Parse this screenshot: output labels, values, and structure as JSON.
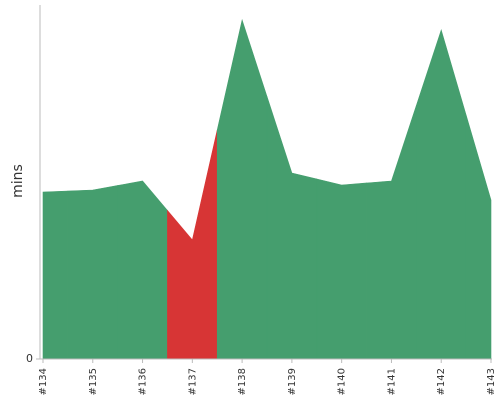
{
  "chart_data": {
    "type": "area",
    "y_label": "mins",
    "categories": [
      "#134",
      "#135",
      "#136",
      "#137",
      "#138",
      "#139",
      "#140",
      "#141",
      "#142",
      "#143"
    ],
    "values": [
      1.67,
      1.69,
      1.78,
      1.19,
      3.39,
      1.86,
      1.74,
      1.78,
      3.29,
      1.59
    ],
    "point_colors": [
      "#459e6e",
      "#459e6e",
      "#459e6e",
      "#d73535",
      "#459e6e",
      "#459e6e",
      "#459e6e",
      "#459e6e",
      "#459e6e",
      "#459e6e"
    ],
    "ylim": [
      0,
      3.54
    ],
    "yticks": [
      0
    ]
  }
}
